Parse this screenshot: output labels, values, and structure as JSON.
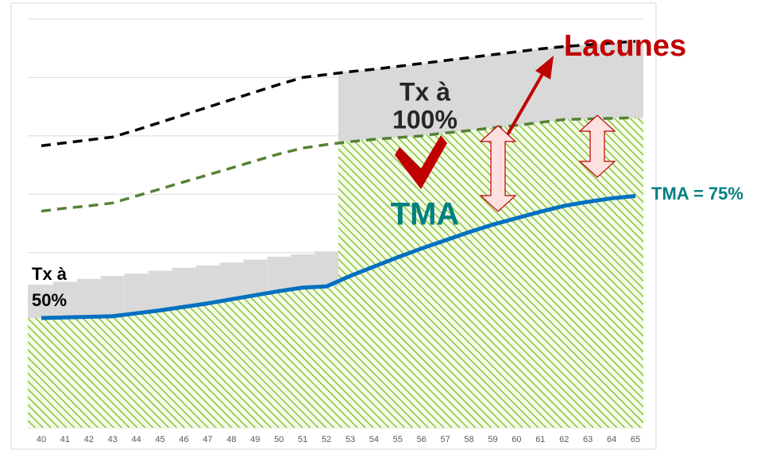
{
  "chart_data": {
    "type": "line",
    "categories": [
      "40",
      "41",
      "42",
      "43",
      "44",
      "45",
      "46",
      "47",
      "48",
      "49",
      "50",
      "51",
      "52",
      "53",
      "54",
      "55",
      "56",
      "57",
      "58",
      "59",
      "60",
      "61",
      "62",
      "63",
      "64",
      "65"
    ],
    "ylim": [
      0,
      7
    ],
    "yticks": [
      0,
      1,
      2,
      3,
      4,
      5,
      6,
      7
    ],
    "grid": true,
    "series": [
      {
        "color": "#000000",
        "dashed": true,
        "values": [
          4.83,
          4.88,
          4.93,
          4.98,
          5.1,
          5.23,
          5.36,
          5.49,
          5.62,
          5.75,
          5.88,
          6.0,
          6.05,
          6.1,
          6.14,
          6.19,
          6.24,
          6.29,
          6.34,
          6.39,
          6.44,
          6.49,
          6.53,
          6.56,
          6.59,
          6.62
        ]
      },
      {
        "color": "#548235",
        "dashed": true,
        "values": [
          3.71,
          3.76,
          3.8,
          3.85,
          3.97,
          4.09,
          4.21,
          4.33,
          4.45,
          4.57,
          4.69,
          4.79,
          4.85,
          4.9,
          4.94,
          4.97,
          5.0,
          5.05,
          5.09,
          5.14,
          5.18,
          5.23,
          5.28,
          5.29,
          5.3,
          5.31
        ]
      },
      {
        "color": "#0070c0",
        "dashed": false,
        "values": [
          1.88,
          1.89,
          1.9,
          1.91,
          1.96,
          2.01,
          2.07,
          2.13,
          2.2,
          2.27,
          2.34,
          2.4,
          2.42,
          2.6,
          2.76,
          2.92,
          3.07,
          3.21,
          3.35,
          3.48,
          3.59,
          3.7,
          3.8,
          3.87,
          3.93,
          3.97
        ]
      }
    ],
    "steps": {
      "color": "#d9d9d9",
      "values": [
        2.45,
        2.5,
        2.55,
        2.6,
        2.64,
        2.69,
        2.74,
        2.78,
        2.83,
        2.88,
        2.93,
        2.97,
        3.02
      ]
    },
    "annotations": {
      "tx100": [
        "Tx à",
        "100%"
      ],
      "tx50": [
        "Tx à",
        "50%"
      ],
      "tma": "TMA",
      "lacunes": "Lacunes",
      "tma75": "TMA = 75%"
    }
  }
}
